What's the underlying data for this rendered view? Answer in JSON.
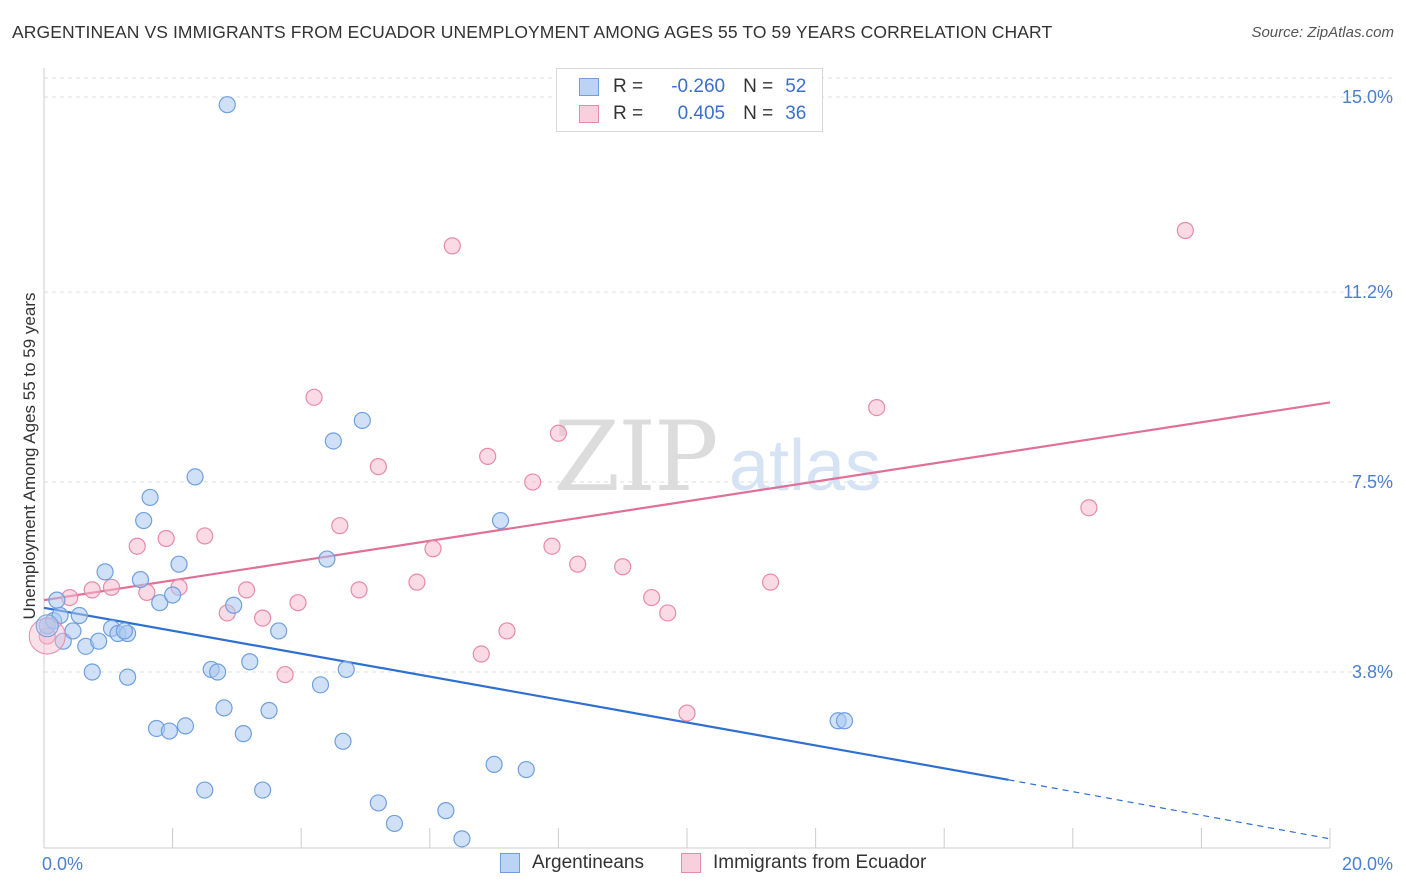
{
  "header": {
    "title": "ARGENTINEAN VS IMMIGRANTS FROM ECUADOR UNEMPLOYMENT AMONG AGES 55 TO 59 YEARS CORRELATION CHART",
    "source": "Source: ZipAtlas.com"
  },
  "watermark": {
    "zip": "ZIP",
    "atlas": "atlas"
  },
  "legend_stats": [
    {
      "r_label": "R =",
      "r_value": "-0.260",
      "n_label": "N =",
      "n_value": "52"
    },
    {
      "r_label": "R =",
      "r_value": "0.405",
      "n_label": "N =",
      "n_value": "36"
    }
  ],
  "bottom_legend": [
    "Argentineans",
    "Immigrants from Ecuador"
  ],
  "colors": {
    "blue_fill": "#a9c8f0",
    "blue_stroke": "#6f9fdf",
    "blue_line": "#2f6fd0",
    "pink_fill": "#f5bccf",
    "pink_stroke": "#e88aa8",
    "pink_line": "#e07098",
    "tick_text": "#4a7fd0",
    "grid": "#dddddd"
  },
  "chart_data": {
    "type": "scatter",
    "title": "ARGENTINEAN VS IMMIGRANTS FROM ECUADOR UNEMPLOYMENT AMONG AGES 55 TO 59 YEARS CORRELATION CHART",
    "xlabel": "",
    "ylabel": "Unemployment Among Ages 55 to 59 years",
    "xlim": [
      0,
      20
    ],
    "ylim": [
      0,
      15.5
    ],
    "x_tick_labels": [
      {
        "value": 0,
        "label": "0.0%"
      },
      {
        "value": 20,
        "label": "20.0%"
      }
    ],
    "y_tick_labels": [
      {
        "value": 3.8,
        "label": "3.8%"
      },
      {
        "value": 7.5,
        "label": "7.5%"
      },
      {
        "value": 11.2,
        "label": "11.2%"
      },
      {
        "value": 15.0,
        "label": "15.0%"
      }
    ],
    "grid": "horizontal dashed",
    "legend_position": "top-center",
    "series": [
      {
        "name": "Argentineans",
        "r": -0.26,
        "n": 52,
        "trend": {
          "x0": 0,
          "y0": 5.05,
          "x1": 15.0,
          "y1": 1.7,
          "dashed_to_x": 20.0,
          "dashed_to_y": 0.55
        },
        "points": [
          [
            0.05,
            4.7
          ],
          [
            0.15,
            4.8
          ],
          [
            0.2,
            5.2
          ],
          [
            0.25,
            4.9
          ],
          [
            0.3,
            4.4
          ],
          [
            0.45,
            4.6
          ],
          [
            0.55,
            4.9
          ],
          [
            0.65,
            4.3
          ],
          [
            0.75,
            3.8
          ],
          [
            0.85,
            4.4
          ],
          [
            0.95,
            5.75
          ],
          [
            1.05,
            4.65
          ],
          [
            1.15,
            4.55
          ],
          [
            1.3,
            4.55
          ],
          [
            1.25,
            4.6
          ],
          [
            1.3,
            3.7
          ],
          [
            1.5,
            5.6
          ],
          [
            1.55,
            6.75
          ],
          [
            1.65,
            7.2
          ],
          [
            1.75,
            2.7
          ],
          [
            1.8,
            5.15
          ],
          [
            1.95,
            2.65
          ],
          [
            2.0,
            5.3
          ],
          [
            2.1,
            5.9
          ],
          [
            2.2,
            2.75
          ],
          [
            2.35,
            7.6
          ],
          [
            2.5,
            1.5
          ],
          [
            2.6,
            3.85
          ],
          [
            2.7,
            3.8
          ],
          [
            2.8,
            3.1
          ],
          [
            2.85,
            14.85
          ],
          [
            2.95,
            5.1
          ],
          [
            3.1,
            2.6
          ],
          [
            3.2,
            4.0
          ],
          [
            3.4,
            1.5
          ],
          [
            3.5,
            3.05
          ],
          [
            3.65,
            4.6
          ],
          [
            4.3,
            3.55
          ],
          [
            4.4,
            6.0
          ],
          [
            4.5,
            8.3
          ],
          [
            4.65,
            2.45
          ],
          [
            4.7,
            3.85
          ],
          [
            4.95,
            8.7
          ],
          [
            5.2,
            1.25
          ],
          [
            5.45,
            0.85
          ],
          [
            6.25,
            1.1
          ],
          [
            6.5,
            0.55
          ],
          [
            7.0,
            2.0
          ],
          [
            7.1,
            6.75
          ],
          [
            7.5,
            1.9
          ],
          [
            12.35,
            2.85
          ],
          [
            12.45,
            2.85
          ]
        ]
      },
      {
        "name": "Immigrants from Ecuador",
        "r": 0.405,
        "n": 36,
        "trend": {
          "x0": 0,
          "y0": 5.2,
          "x1": 20.0,
          "y1": 9.05
        },
        "points": [
          [
            0.05,
            4.5
          ],
          [
            0.4,
            5.25
          ],
          [
            0.75,
            5.4
          ],
          [
            1.05,
            5.45
          ],
          [
            1.45,
            6.25
          ],
          [
            1.6,
            5.35
          ],
          [
            1.9,
            6.4
          ],
          [
            2.1,
            5.45
          ],
          [
            2.5,
            6.45
          ],
          [
            2.85,
            4.95
          ],
          [
            3.15,
            5.4
          ],
          [
            3.4,
            4.85
          ],
          [
            3.75,
            3.75
          ],
          [
            3.95,
            5.15
          ],
          [
            4.2,
            9.15
          ],
          [
            4.6,
            6.65
          ],
          [
            4.9,
            5.4
          ],
          [
            5.2,
            7.8
          ],
          [
            5.8,
            5.55
          ],
          [
            6.05,
            6.2
          ],
          [
            6.35,
            12.1
          ],
          [
            6.8,
            4.15
          ],
          [
            6.9,
            8.0
          ],
          [
            7.2,
            4.6
          ],
          [
            7.6,
            7.5
          ],
          [
            7.9,
            6.25
          ],
          [
            8.0,
            8.45
          ],
          [
            8.3,
            5.9
          ],
          [
            9.0,
            5.85
          ],
          [
            9.45,
            5.25
          ],
          [
            9.7,
            4.95
          ],
          [
            10.0,
            3.0
          ],
          [
            11.3,
            5.55
          ],
          [
            12.95,
            8.95
          ],
          [
            16.25,
            7.0
          ],
          [
            17.75,
            12.4
          ]
        ]
      }
    ]
  }
}
